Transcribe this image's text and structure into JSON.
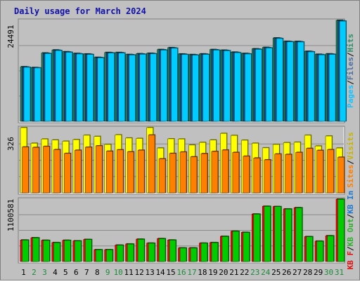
{
  "chart_data": [
    {
      "type": "bar",
      "title": "Daily usage for March 2024",
      "panel": "top",
      "ymax_label": "24491",
      "ylim": [
        0,
        24491
      ],
      "grid": true,
      "legend": [
        {
          "text": "Hits",
          "color": "#2f8f6a"
        },
        {
          "text": "Files",
          "color": "#4f6fa0"
        },
        {
          "text": "Pages",
          "color": "#16c3ff"
        }
      ],
      "categories": [
        "1",
        "2",
        "3",
        "4",
        "5",
        "6",
        "7",
        "8",
        "9",
        "10",
        "11",
        "12",
        "13",
        "14",
        "15",
        "16",
        "17",
        "18",
        "19",
        "20",
        "21",
        "22",
        "23",
        "24",
        "25",
        "26",
        "27",
        "28",
        "29",
        "30",
        "31"
      ],
      "weekend_days": [
        "2",
        "3",
        "9",
        "10",
        "16",
        "17",
        "23",
        "24",
        "30",
        "31"
      ],
      "series": [
        {
          "name": "Hits",
          "color": "#1f8060",
          "values": [
            13240,
            13050,
            16580,
            17310,
            16880,
            16470,
            16340,
            15520,
            16700,
            16700,
            16210,
            16400,
            16510,
            17410,
            17870,
            16340,
            16190,
            16360,
            17410,
            17260,
            16780,
            16470,
            17590,
            17930,
            20220,
            19410,
            19380,
            16980,
            16260,
            16370,
            24491
          ]
        },
        {
          "name": "Files",
          "color": "#1a4a8a",
          "values": [
            13170,
            13000,
            16490,
            17240,
            16810,
            16400,
            16270,
            15460,
            16630,
            16630,
            16150,
            16330,
            16440,
            17340,
            17800,
            16270,
            16120,
            16290,
            17340,
            17190,
            16710,
            16400,
            17520,
            17860,
            20150,
            19340,
            19310,
            16910,
            16190,
            16300,
            24400
          ]
        },
        {
          "name": "Pages",
          "color": "#00ccff",
          "values": [
            13100,
            12950,
            16420,
            17160,
            16730,
            16330,
            16200,
            15400,
            16560,
            16560,
            16080,
            16260,
            16370,
            17270,
            17730,
            16200,
            16050,
            16220,
            17270,
            17120,
            16640,
            16330,
            17450,
            17790,
            20080,
            19270,
            19240,
            16840,
            16120,
            16230,
            24300
          ]
        }
      ]
    },
    {
      "type": "bar",
      "panel": "middle",
      "ymax_label": "326",
      "ylim": [
        0,
        326
      ],
      "grid": true,
      "legend": [
        {
          "text": "Visits",
          "color": "#c8b400"
        },
        {
          "text": "Sites",
          "color": "#ff7f00"
        }
      ],
      "series": [
        {
          "name": "Visits",
          "color": "#ffff00",
          "values": [
            326,
            248,
            269,
            264,
            258,
            266,
            288,
            282,
            242,
            290,
            274,
            272,
            326,
            224,
            270,
            269,
            239,
            252,
            264,
            297,
            287,
            263,
            248,
            225,
            242,
            251,
            253,
            288,
            234,
            284,
            224
          ]
        },
        {
          "name": "Sites",
          "color": "#ff8000",
          "values": [
            229,
            227,
            232,
            216,
            197,
            213,
            228,
            235,
            208,
            215,
            205,
            213,
            289,
            170,
            197,
            204,
            180,
            196,
            207,
            214,
            202,
            183,
            174,
            165,
            194,
            192,
            202,
            222,
            212,
            216,
            178
          ]
        }
      ]
    },
    {
      "type": "bar",
      "panel": "bottom",
      "ymax_label": "1100581",
      "ylim": [
        0,
        1100581
      ],
      "grid": true,
      "legend": [
        {
          "text": "KB In",
          "color": "#1e7ad0"
        },
        {
          "text": "KB Out",
          "color": "#2bb32b"
        },
        {
          "text": "KB F",
          "color": "#e01010"
        }
      ],
      "series": [
        {
          "name": "KB F",
          "color": "#ff0000",
          "values": [
            380000,
            420000,
            375000,
            335000,
            375000,
            365000,
            390000,
            210000,
            210000,
            290000,
            310000,
            395000,
            325000,
            405000,
            380000,
            240000,
            240000,
            325000,
            335000,
            445000,
            535000,
            515000,
            838000,
            975000,
            970000,
            928000,
            950000,
            440000,
            360000,
            455000,
            1100581
          ]
        },
        {
          "name": "KB Out",
          "color": "#00cc00",
          "values": [
            378000,
            418000,
            373000,
            333000,
            373000,
            363000,
            388000,
            208000,
            208000,
            288000,
            308000,
            393000,
            323000,
            403000,
            378000,
            238000,
            238000,
            323000,
            333000,
            443000,
            533000,
            513000,
            836000,
            973000,
            968000,
            926000,
            948000,
            438000,
            358000,
            453000,
            1098000
          ]
        }
      ]
    }
  ]
}
